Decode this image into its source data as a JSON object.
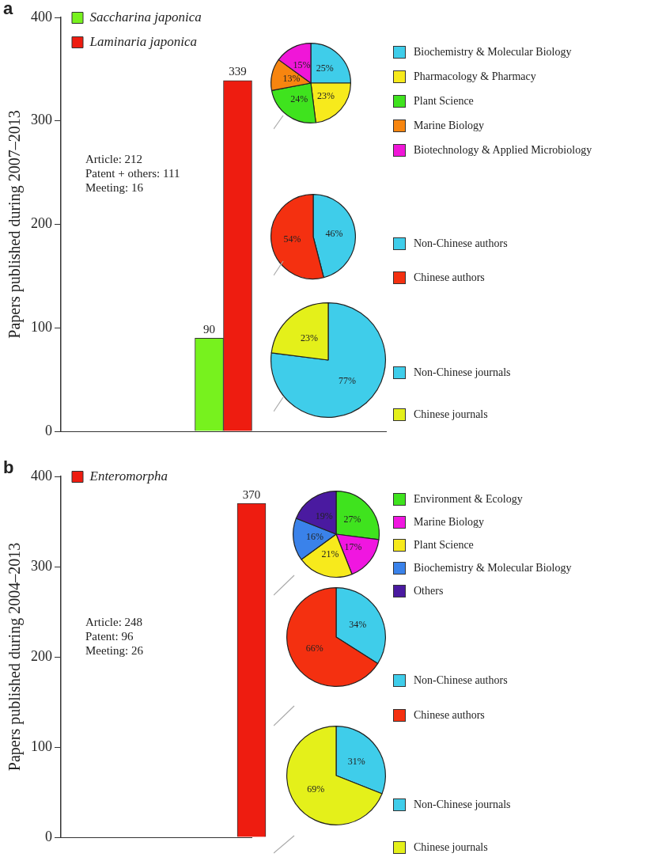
{
  "chart_data": [
    {
      "type": "bar",
      "title": "a",
      "ylabel": "Papers published during 2007–2013",
      "categories": [
        null
      ],
      "series": [
        {
          "name": "Saccharina japonica",
          "color": "#77f21e",
          "values": [
            90
          ]
        },
        {
          "name": "Laminaria japonica",
          "color": "#ee1c10",
          "values": [
            339
          ]
        }
      ],
      "ylim": [
        0,
        400
      ],
      "yticks": [
        0,
        100,
        200,
        300,
        400
      ],
      "data_labels": true,
      "legend": "top left",
      "grid": false,
      "annotations": [
        "Article: 212",
        "Patent + others: 111",
        "Meeting: 16"
      ]
    },
    {
      "type": "pie",
      "categories": [
        "Biochemistry & Molecular Biology",
        "Pharmacology & Pharmacy",
        "Plant Science",
        "Marine Biology",
        "Biotechnology & Applied Microbiology"
      ],
      "values": [
        25,
        23,
        24,
        13,
        15
      ],
      "colors": [
        "#3fcdea",
        "#f7ea1c",
        "#3fe31e",
        "#f7850f",
        "#f016d8"
      ],
      "value_labels": [
        "25%",
        "23%",
        "24%",
        "13%",
        "15%"
      ],
      "legend": "right"
    },
    {
      "type": "pie",
      "categories": [
        "Non-Chinese authors",
        "Chinese authors"
      ],
      "values": [
        46,
        54
      ],
      "colors": [
        "#3fcdea",
        "#f43010"
      ],
      "value_labels": [
        "46%",
        "54%"
      ],
      "legend": "right"
    },
    {
      "type": "pie",
      "categories": [
        "Non-Chinese journals",
        "Chinese journals"
      ],
      "values": [
        77,
        23
      ],
      "colors": [
        "#3fcdea",
        "#e4f01a"
      ],
      "value_labels": [
        "77%",
        "23%"
      ],
      "legend": "right"
    },
    {
      "type": "bar",
      "title": "b",
      "ylabel": "Papers published during 2004–2013",
      "categories": [
        null
      ],
      "series": [
        {
          "name": "Enteromorpha",
          "color": "#ee1c10",
          "values": [
            370
          ]
        }
      ],
      "ylim": [
        0,
        400
      ],
      "yticks": [
        0,
        100,
        200,
        300,
        400
      ],
      "data_labels": true,
      "legend": "top left",
      "grid": false,
      "annotations": [
        "Article: 248",
        "Patent: 96",
        "Meeting: 26"
      ]
    },
    {
      "type": "pie",
      "categories": [
        "Environment & Ecology",
        "Marine Biology",
        "Plant Science",
        "Biochemistry & Molecular Biology",
        "Others"
      ],
      "values": [
        27,
        17,
        21,
        16,
        19
      ],
      "colors": [
        "#3fe31e",
        "#f016e0",
        "#f7ea1c",
        "#3a82ea",
        "#4a1aa0"
      ],
      "value_labels": [
        "27%",
        "17%",
        "21%",
        "16%",
        "19%"
      ],
      "legend": "right"
    },
    {
      "type": "pie",
      "categories": [
        "Non-Chinese authors",
        "Chinese authors"
      ],
      "values": [
        34,
        66
      ],
      "colors": [
        "#3fcdea",
        "#f43010"
      ],
      "value_labels": [
        "34%",
        "66%"
      ],
      "legend": "right"
    },
    {
      "type": "pie",
      "categories": [
        "Non-Chinese journals",
        "Chinese journals"
      ],
      "values": [
        31,
        69
      ],
      "colors": [
        "#3fcdea",
        "#e4f01a"
      ],
      "value_labels": [
        "31%",
        "69%"
      ],
      "legend": "right"
    }
  ]
}
